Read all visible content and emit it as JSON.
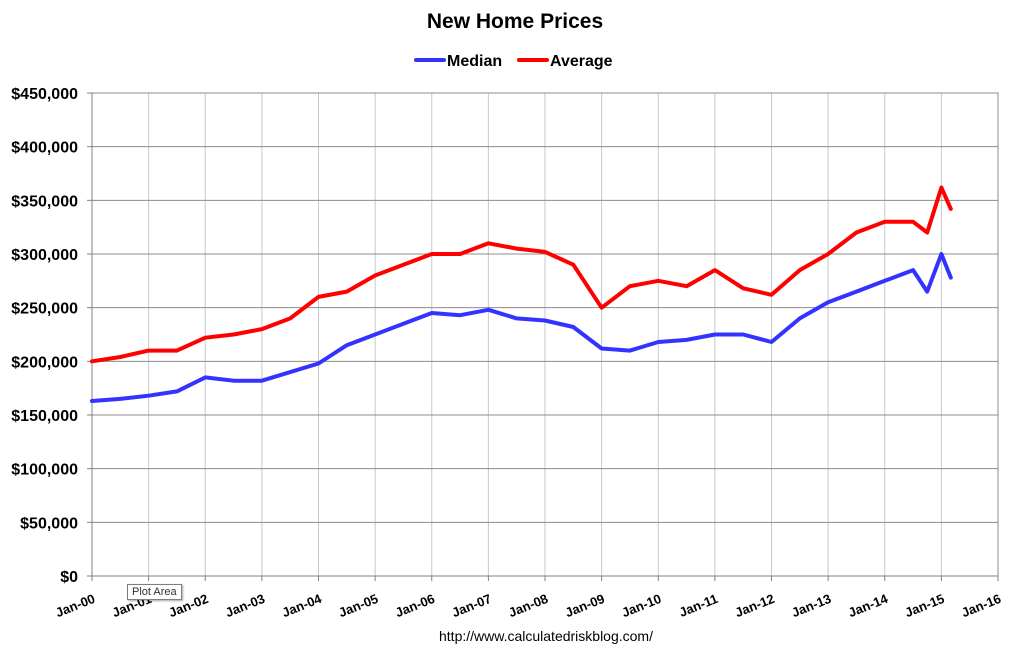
{
  "tooltip": "Plot Area",
  "chart_data": {
    "type": "line",
    "title": "New Home Prices",
    "xlabel": "",
    "ylabel": "",
    "source": "http://www.calculatedriskblog.com/",
    "x_ticks": [
      "Jan-00",
      "Jan-01",
      "Jan-02",
      "Jan-03",
      "Jan-04",
      "Jan-05",
      "Jan-06",
      "Jan-07",
      "Jan-08",
      "Jan-09",
      "Jan-10",
      "Jan-11",
      "Jan-12",
      "Jan-13",
      "Jan-14",
      "Jan-15",
      "Jan-16"
    ],
    "x_range": [
      "Jan-00",
      "Jan-16"
    ],
    "y_ticks": [
      "$0",
      "$50,000",
      "$100,000",
      "$150,000",
      "$200,000",
      "$250,000",
      "$300,000",
      "$350,000",
      "$400,000",
      "$450,000"
    ],
    "ylim": [
      0,
      450000
    ],
    "grid": true,
    "legend_position": "top-center",
    "x": [
      "Jan-00",
      "Jul-00",
      "Jan-01",
      "Jul-01",
      "Jan-02",
      "Jul-02",
      "Jan-03",
      "Jul-03",
      "Jan-04",
      "Jul-04",
      "Jan-05",
      "Jul-05",
      "Jan-06",
      "Jul-06",
      "Jan-07",
      "Jul-07",
      "Jan-08",
      "Jul-08",
      "Jan-09",
      "Jul-09",
      "Jan-10",
      "Jul-10",
      "Jan-11",
      "Jul-11",
      "Jan-12",
      "Jul-12",
      "Jan-13",
      "Jul-13",
      "Jan-14",
      "Jul-14",
      "Oct-14",
      "Jan-15",
      "Mar-15"
    ],
    "series": [
      {
        "name": "Median",
        "color": "#3333ff",
        "values": [
          163000,
          165000,
          168000,
          172000,
          185000,
          182000,
          182000,
          190000,
          198000,
          215000,
          225000,
          235000,
          245000,
          243000,
          248000,
          240000,
          238000,
          232000,
          212000,
          210000,
          218000,
          220000,
          225000,
          225000,
          218000,
          240000,
          255000,
          265000,
          275000,
          285000,
          265000,
          300000,
          278000
        ]
      },
      {
        "name": "Average",
        "color": "#ff0000",
        "values": [
          200000,
          204000,
          210000,
          210000,
          222000,
          225000,
          230000,
          240000,
          260000,
          265000,
          280000,
          290000,
          300000,
          300000,
          310000,
          305000,
          302000,
          290000,
          250000,
          270000,
          275000,
          270000,
          285000,
          268000,
          262000,
          285000,
          300000,
          320000,
          330000,
          330000,
          320000,
          362000,
          342000
        ]
      }
    ]
  }
}
